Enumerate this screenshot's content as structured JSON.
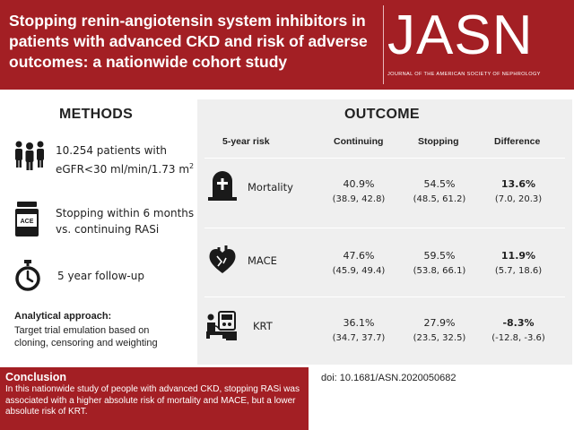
{
  "header": {
    "title": "Stopping renin-angiotensin system inhibitors in patients with advanced CKD and risk of adverse outcomes: a nationwide cohort study",
    "logo": "JASN",
    "logo_subtitle": "JOURNAL OF THE AMERICAN SOCIETY OF NEPHROLOGY",
    "colors": {
      "brand_red": "#a31f24",
      "panel_gray": "#efefef"
    }
  },
  "methods": {
    "heading": "METHODS",
    "items": [
      {
        "icon": "people-group-icon",
        "text_line1": "10.254 patients with",
        "text_line2": "eGFR<30 ml/min/1.73 m",
        "superscript": "2"
      },
      {
        "icon": "ace-pill-bottle-icon",
        "icon_label": "ACE",
        "text_line1": "Stopping within 6 months",
        "text_line2": "vs. continuing RASi"
      },
      {
        "icon": "stopwatch-icon",
        "text_line1": "5 year follow-up"
      }
    ],
    "analytical_title": "Analytical approach:",
    "analytical_body": "Target trial emulation based on cloning, censoring and weighting"
  },
  "outcome": {
    "heading": "OUTCOME",
    "columns": [
      "5-year risk",
      "Continuing",
      "Stopping",
      "Difference"
    ],
    "rows": [
      {
        "icon": "tombstone-icon",
        "label": "Mortality",
        "continuing": "40.9%",
        "continuing_ci": "(38.9, 42.8)",
        "stopping": "54.5%",
        "stopping_ci": "(48.5, 61.2)",
        "difference": "13.6%",
        "difference_ci": "(7.0, 20.3)"
      },
      {
        "icon": "heart-icon",
        "label": "MACE",
        "continuing": "47.6%",
        "continuing_ci": "(45.9, 49.4)",
        "stopping": "59.5%",
        "stopping_ci": "(53.8, 66.1)",
        "difference": "11.9%",
        "difference_ci": "(5.7, 18.6)"
      },
      {
        "icon": "dialysis-machine-icon",
        "label": "KRT",
        "continuing": "36.1%",
        "continuing_ci": "(34.7, 37.7)",
        "stopping": "27.9%",
        "stopping_ci": "(23.5, 32.5)",
        "difference": "-8.3%",
        "difference_ci": "(-12.8, -3.6)"
      }
    ]
  },
  "conclusion": {
    "title": "Conclusion",
    "body": "In this nationwide study of people with advanced CKD, stopping RASi was associated with a higher absolute risk of mortality and MACE, but a lower absolute risk of KRT."
  },
  "doi": "doi: 10.1681/ASN.2020050682"
}
